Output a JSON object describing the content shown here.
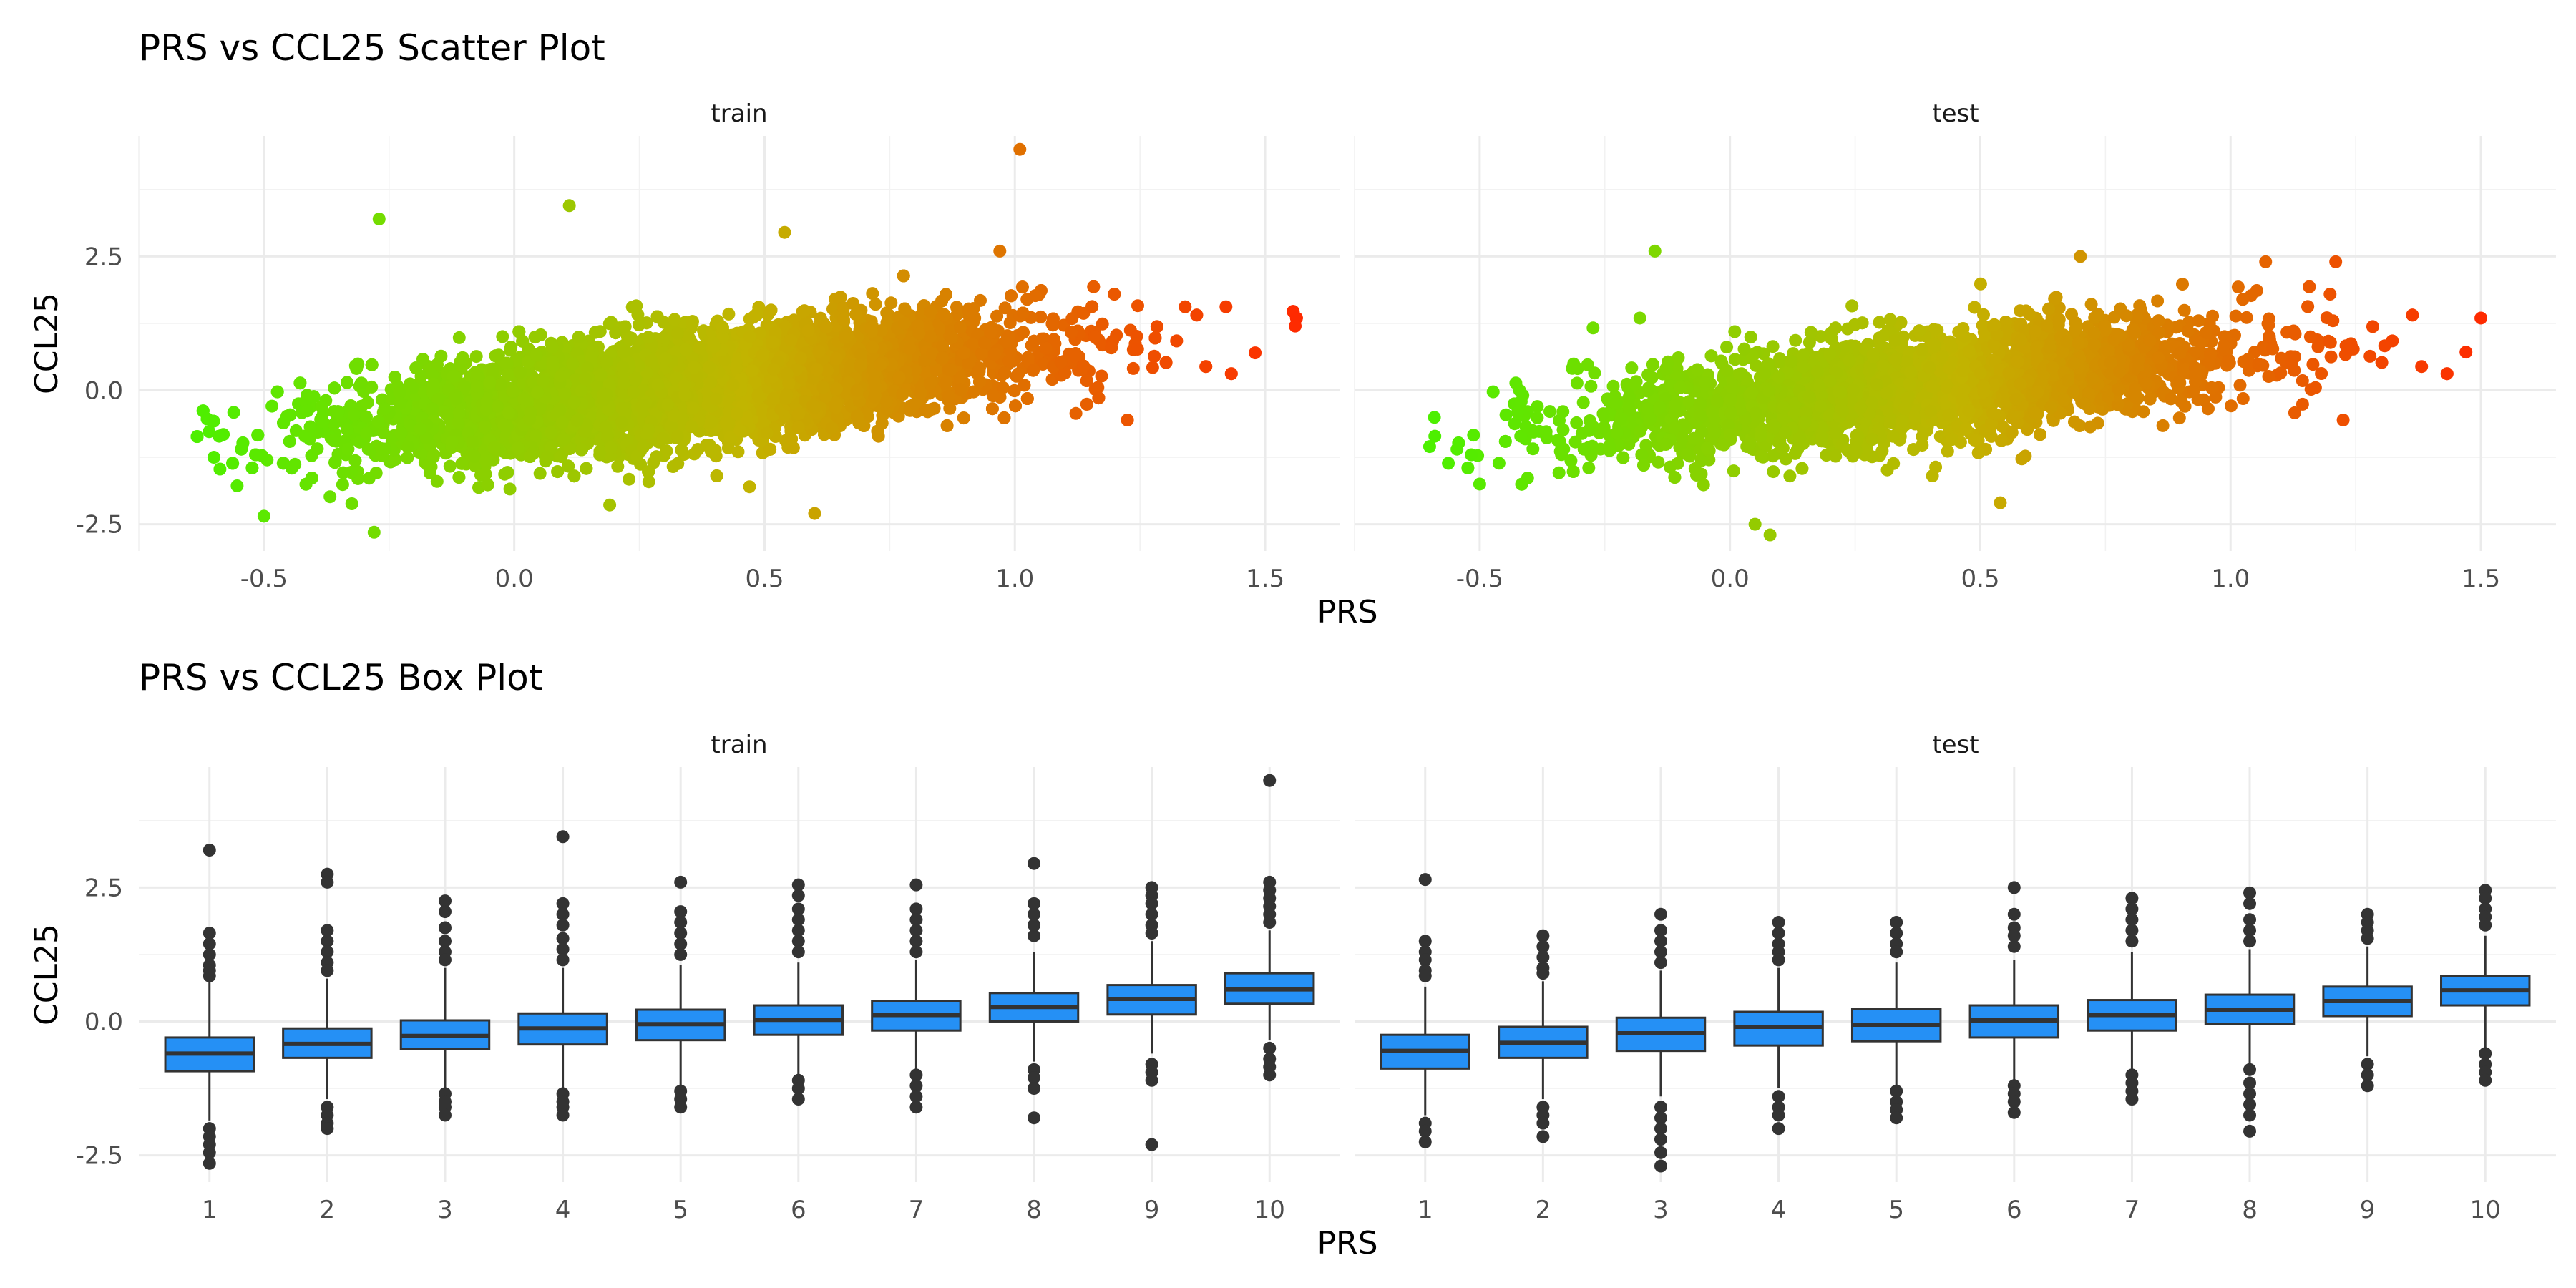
{
  "chart_data": [
    {
      "type": "scatter",
      "title": "PRS vs CCL25 Scatter Plot",
      "xlabel": "PRS",
      "ylabel": "CCL25",
      "facets": [
        "train",
        "test"
      ],
      "xlim": [
        -0.75,
        1.65
      ],
      "ylim": [
        -3.0,
        4.75
      ],
      "x_ticks": [
        "-0.5",
        "0.0",
        "0.5",
        "1.0",
        "1.5"
      ],
      "y_ticks": [
        "-2.5",
        "0.0",
        "2.5"
      ],
      "color_gradient": {
        "low": "#4cf000",
        "mid": "#c2b400",
        "high": "#ff2800"
      },
      "trend": {
        "slope": 1.05,
        "intercept": -0.33,
        "spread_sd": 0.5
      },
      "series": [
        {
          "name": "train",
          "n_points_approx": 8000,
          "x_range": [
            -0.65,
            1.58
          ],
          "outliers": [
            [
              1.01,
              4.5
            ],
            [
              -0.27,
              3.2
            ],
            [
              0.11,
              3.45
            ],
            [
              0.54,
              2.95
            ],
            [
              0.6,
              -2.3
            ],
            [
              -0.28,
              -2.65
            ],
            [
              -0.5,
              -2.35
            ],
            [
              1.48,
              0.7
            ],
            [
              1.56,
              1.2
            ],
            [
              -0.6,
              -1.25
            ],
            [
              0.47,
              -1.8
            ],
            [
              0.97,
              2.6
            ]
          ]
        },
        {
          "name": "test",
          "n_points_approx": 3000,
          "x_range": [
            -0.6,
            1.52
          ],
          "outliers": [
            [
              -0.15,
              2.6
            ],
            [
              0.7,
              2.5
            ],
            [
              1.07,
              2.4
            ],
            [
              1.21,
              2.4
            ],
            [
              0.08,
              -2.7
            ],
            [
              0.05,
              -2.5
            ],
            [
              -0.5,
              -1.75
            ],
            [
              -0.6,
              -1.05
            ],
            [
              1.5,
              1.35
            ],
            [
              0.54,
              -2.1
            ],
            [
              -0.18,
              1.35
            ]
          ]
        }
      ]
    },
    {
      "type": "box",
      "title": "PRS vs CCL25 Box Plot",
      "xlabel": "PRS",
      "ylabel": "CCL25",
      "facets": [
        "train",
        "test"
      ],
      "categories": [
        "1",
        "2",
        "3",
        "4",
        "5",
        "6",
        "7",
        "8",
        "9",
        "10"
      ],
      "ylim": [
        -3.0,
        4.75
      ],
      "y_ticks": [
        "-2.5",
        "0.0",
        "2.5"
      ],
      "box_color": "#2590f5",
      "series": [
        {
          "name": "train",
          "boxes": [
            {
              "q1": -0.93,
              "median": -0.6,
              "q3": -0.3,
              "low": -1.85,
              "high": 0.75,
              "out": [
                3.2,
                1.65,
                1.45,
                1.25,
                1.05,
                0.95,
                0.85,
                -2.0,
                -2.15,
                -2.3,
                -2.45,
                -2.65
              ]
            },
            {
              "q1": -0.68,
              "median": -0.42,
              "q3": -0.13,
              "low": -1.45,
              "high": 0.8,
              "out": [
                2.75,
                2.6,
                1.7,
                1.5,
                1.3,
                1.1,
                0.95,
                -1.6,
                -1.75,
                -1.9,
                -2.0
              ]
            },
            {
              "q1": -0.52,
              "median": -0.27,
              "q3": 0.02,
              "low": -1.25,
              "high": 1.0,
              "out": [
                2.25,
                2.05,
                1.75,
                1.5,
                1.3,
                1.15,
                -1.35,
                -1.5,
                -1.6,
                -1.75
              ]
            },
            {
              "q1": -0.43,
              "median": -0.13,
              "q3": 0.15,
              "low": -1.25,
              "high": 1.0,
              "out": [
                3.45,
                2.2,
                2.0,
                1.8,
                1.55,
                1.35,
                1.15,
                -1.35,
                -1.5,
                -1.6,
                -1.75
              ]
            },
            {
              "q1": -0.35,
              "median": -0.05,
              "q3": 0.22,
              "low": -1.2,
              "high": 1.05,
              "out": [
                2.6,
                2.05,
                1.85,
                1.65,
                1.45,
                1.25,
                -1.3,
                -1.45,
                -1.6
              ]
            },
            {
              "q1": -0.25,
              "median": 0.03,
              "q3": 0.3,
              "low": -1.0,
              "high": 1.1,
              "out": [
                2.55,
                2.35,
                2.1,
                1.9,
                1.7,
                1.5,
                1.3,
                -1.1,
                -1.25,
                -1.45
              ]
            },
            {
              "q1": -0.17,
              "median": 0.12,
              "q3": 0.38,
              "low": -0.95,
              "high": 1.15,
              "out": [
                2.55,
                2.1,
                1.9,
                1.7,
                1.5,
                1.3,
                -1.0,
                -1.2,
                -1.4,
                -1.6
              ]
            },
            {
              "q1": 0.0,
              "median": 0.27,
              "q3": 0.53,
              "low": -0.75,
              "high": 1.3,
              "out": [
                2.95,
                2.2,
                2.0,
                1.8,
                1.6,
                -0.9,
                -1.05,
                -1.25,
                -1.8
              ]
            },
            {
              "q1": 0.13,
              "median": 0.42,
              "q3": 0.68,
              "low": -0.6,
              "high": 1.5,
              "out": [
                2.5,
                2.35,
                2.2,
                2.0,
                1.8,
                1.65,
                -0.8,
                -0.95,
                -1.1,
                -2.3
              ]
            },
            {
              "q1": 0.33,
              "median": 0.6,
              "q3": 0.9,
              "low": -0.35,
              "high": 1.7,
              "out": [
                4.5,
                2.6,
                2.45,
                2.3,
                2.15,
                2.0,
                1.85,
                -0.5,
                -0.7,
                -0.85,
                -1.0
              ]
            }
          ]
        },
        {
          "name": "test",
          "boxes": [
            {
              "q1": -0.88,
              "median": -0.55,
              "q3": -0.25,
              "low": -1.75,
              "high": 0.65,
              "out": [
                2.65,
                1.5,
                1.3,
                1.15,
                0.95,
                0.85,
                -1.9,
                -2.05,
                -2.25
              ]
            },
            {
              "q1": -0.68,
              "median": -0.4,
              "q3": -0.1,
              "low": -1.45,
              "high": 0.75,
              "out": [
                1.6,
                1.4,
                1.2,
                1.0,
                0.9,
                -1.6,
                -1.75,
                -1.9,
                -2.15
              ]
            },
            {
              "q1": -0.55,
              "median": -0.22,
              "q3": 0.07,
              "low": -1.4,
              "high": 0.95,
              "out": [
                2.0,
                1.7,
                1.5,
                1.3,
                1.1,
                -1.6,
                -1.8,
                -2.0,
                -2.2,
                -2.45,
                -2.7
              ]
            },
            {
              "q1": -0.45,
              "median": -0.1,
              "q3": 0.18,
              "low": -1.25,
              "high": 1.0,
              "out": [
                1.85,
                1.65,
                1.45,
                1.3,
                1.15,
                -1.4,
                -1.6,
                -1.75,
                -2.0
              ]
            },
            {
              "q1": -0.37,
              "median": -0.06,
              "q3": 0.23,
              "low": -1.2,
              "high": 1.1,
              "out": [
                1.85,
                1.65,
                1.45,
                1.3,
                -1.3,
                -1.5,
                -1.65,
                -1.8
              ]
            },
            {
              "q1": -0.3,
              "median": 0.02,
              "q3": 0.3,
              "low": -1.1,
              "high": 1.15,
              "out": [
                2.5,
                2.0,
                1.75,
                1.6,
                1.4,
                -1.2,
                -1.35,
                -1.5,
                -1.7
              ]
            },
            {
              "q1": -0.17,
              "median": 0.12,
              "q3": 0.4,
              "low": -0.95,
              "high": 1.3,
              "out": [
                2.3,
                2.1,
                1.9,
                1.7,
                1.5,
                -1.0,
                -1.15,
                -1.3,
                -1.45
              ]
            },
            {
              "q1": -0.05,
              "median": 0.22,
              "q3": 0.5,
              "low": -0.8,
              "high": 1.35,
              "out": [
                2.4,
                2.2,
                1.9,
                1.7,
                1.5,
                -0.9,
                -1.15,
                -1.35,
                -1.55,
                -1.75,
                -2.05
              ]
            },
            {
              "q1": 0.1,
              "median": 0.38,
              "q3": 0.65,
              "low": -0.65,
              "high": 1.4,
              "out": [
                2.0,
                1.85,
                1.7,
                1.55,
                -0.8,
                -1.0,
                -1.2
              ]
            },
            {
              "q1": 0.3,
              "median": 0.58,
              "q3": 0.85,
              "low": -0.5,
              "high": 1.6,
              "out": [
                2.45,
                2.3,
                2.1,
                1.95,
                1.8,
                -0.6,
                -0.8,
                -0.95,
                -1.1
              ]
            }
          ]
        }
      ]
    }
  ]
}
